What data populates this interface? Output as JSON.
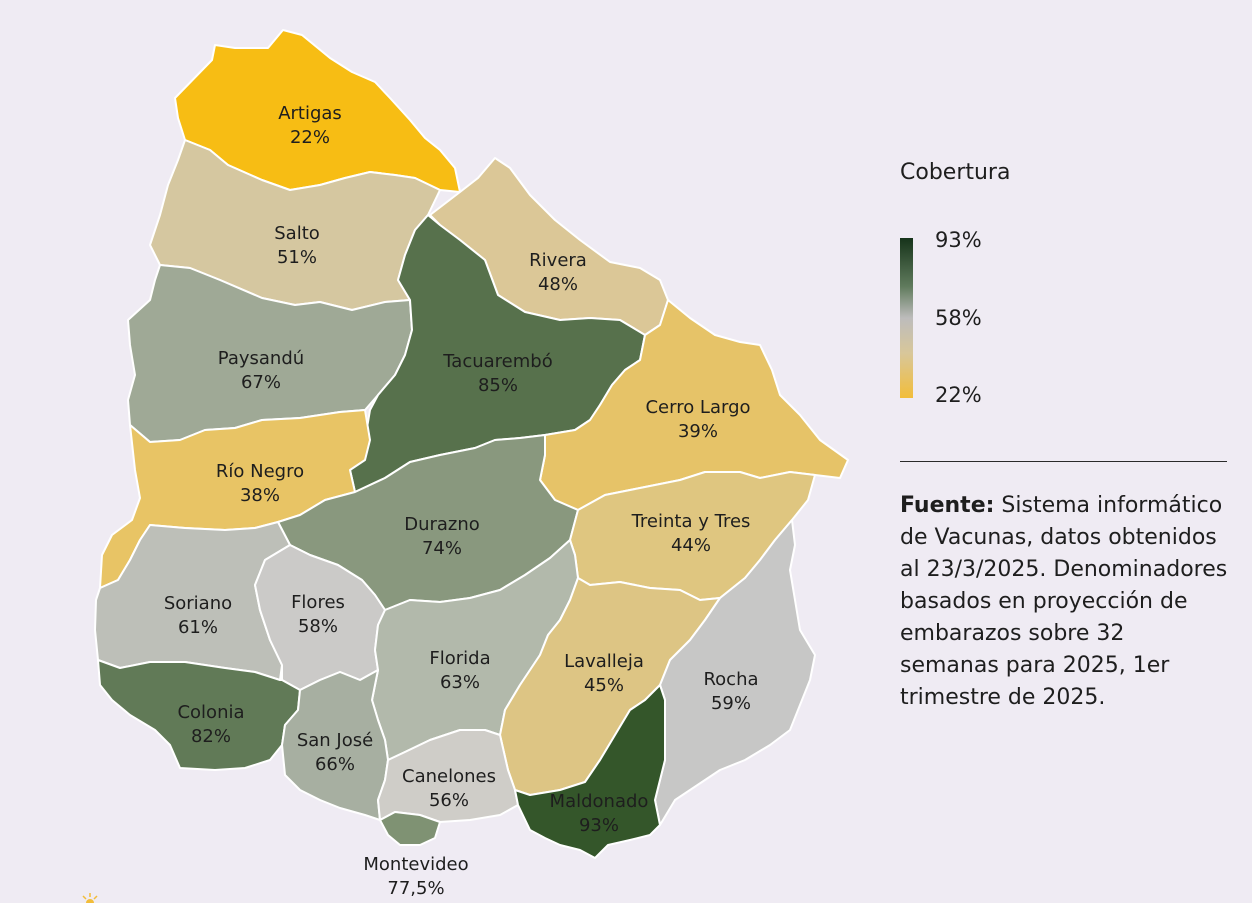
{
  "legend": {
    "title": "Cobertura",
    "max_label": "93%",
    "mid_label": "58%",
    "min_label": "22%",
    "colors": {
      "high": "#16331a",
      "mid": "#bdbcbc",
      "low": "#f2bd3a"
    }
  },
  "source": {
    "label": "Fuente:",
    "text": "Sistema informático de Vacunas, datos obtenidos al 23/3/2025. Denominadores basados en proyección de embarazos sobre 32 semanas para 2025, 1er trimestre de 2025."
  },
  "departments": [
    {
      "name": "Artigas",
      "value": "22%",
      "color": "#f7bd14"
    },
    {
      "name": "Salto",
      "value": "51%",
      "color": "#d5c7a0"
    },
    {
      "name": "Rivera",
      "value": "48%",
      "color": "#dbc797"
    },
    {
      "name": "Paysandú",
      "value": "67%",
      "color": "#9fa996"
    },
    {
      "name": "Tacuarembó",
      "value": "85%",
      "color": "#57714c"
    },
    {
      "name": "Cerro Largo",
      "value": "39%",
      "color": "#e6c368"
    },
    {
      "name": "Río Negro",
      "value": "38%",
      "color": "#e8c465"
    },
    {
      "name": "Durazno",
      "value": "74%",
      "color": "#89987e"
    },
    {
      "name": "Treinta y Tres",
      "value": "44%",
      "color": "#dfc680"
    },
    {
      "name": "Soriano",
      "value": "61%",
      "color": "#bdbfb8"
    },
    {
      "name": "Flores",
      "value": "58%",
      "color": "#cbcac8"
    },
    {
      "name": "Florida",
      "value": "63%",
      "color": "#b2b9ab"
    },
    {
      "name": "Lavalleja",
      "value": "45%",
      "color": "#ddc584"
    },
    {
      "name": "Rocha",
      "value": "59%",
      "color": "#c7c7c6"
    },
    {
      "name": "Colonia",
      "value": "82%",
      "color": "#617a57"
    },
    {
      "name": "San José",
      "value": "66%",
      "color": "#a7afa1"
    },
    {
      "name": "Canelones",
      "value": "56%",
      "color": "#cfcdc8"
    },
    {
      "name": "Maldonado",
      "value": "93%",
      "color": "#34562a"
    },
    {
      "name": "Montevideo",
      "value": "77,5%",
      "color": "#7f9273"
    }
  ]
}
